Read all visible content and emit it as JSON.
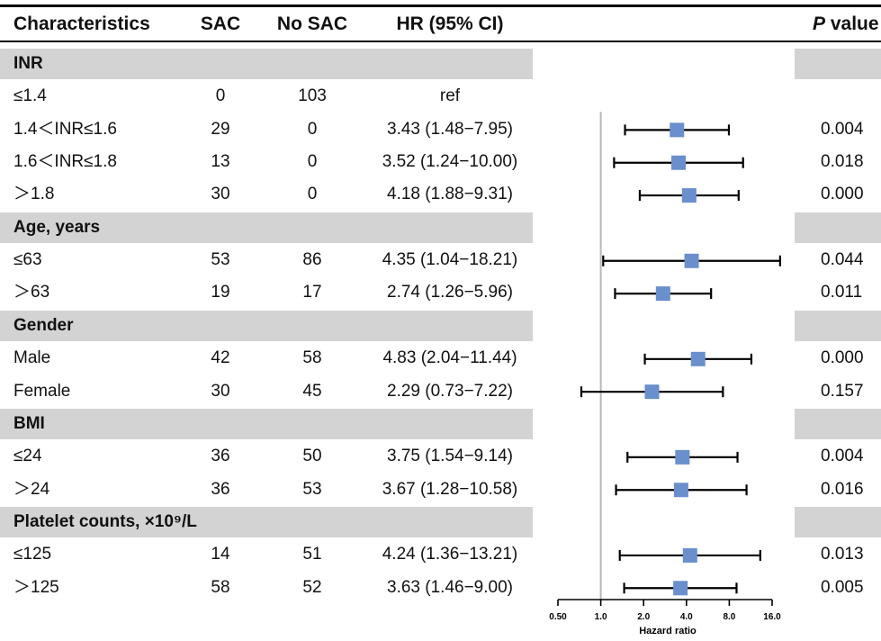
{
  "header": {
    "characteristics": "Characteristics",
    "sac": "SAC",
    "no_sac": "No SAC",
    "hr": "HR (95% CI)",
    "p_italic": "P",
    "p_rest": " value"
  },
  "chart_data": {
    "type": "forest",
    "xlabel": "Hazard ratio",
    "x_scale": "log2",
    "xlim": [
      0.5,
      16.0
    ],
    "x_ticks": [
      "0.50",
      "1.0",
      "2.0",
      "4.0",
      "8.0",
      "16.0"
    ],
    "reference_line": 1.0,
    "marker_color": "#6a8fcd",
    "rows": [
      {
        "kind": "group",
        "label": "INR"
      },
      {
        "kind": "item",
        "label": "≤1.4",
        "sac": "0",
        "no_sac": "103",
        "hr_text": "ref",
        "p": "",
        "hr": null,
        "lo": null,
        "hi": null
      },
      {
        "kind": "item",
        "label": "1.4＜INR≤1.6",
        "sac": "29",
        "no_sac": "0",
        "hr_text": "3.43 (1.48−7.95)",
        "p": "0.004",
        "hr": 3.43,
        "lo": 1.48,
        "hi": 7.95
      },
      {
        "kind": "item",
        "label": "1.6＜INR≤1.8",
        "sac": "13",
        "no_sac": "0",
        "hr_text": "3.52 (1.24−10.00)",
        "p": "0.018",
        "hr": 3.52,
        "lo": 1.24,
        "hi": 10.0
      },
      {
        "kind": "item",
        "label": "＞1.8",
        "sac": "30",
        "no_sac": "0",
        "hr_text": "4.18 (1.88−9.31)",
        "p": "0.000",
        "hr": 4.18,
        "lo": 1.88,
        "hi": 9.31
      },
      {
        "kind": "group",
        "label": "Age, years"
      },
      {
        "kind": "item",
        "label": "≤63",
        "sac": "53",
        "no_sac": "86",
        "hr_text": "4.35 (1.04−18.21)",
        "p": "0.044",
        "hr": 4.35,
        "lo": 1.04,
        "hi": 18.21
      },
      {
        "kind": "item",
        "label": "＞63",
        "sac": "19",
        "no_sac": "17",
        "hr_text": "2.74 (1.26−5.96)",
        "p": "0.011",
        "hr": 2.74,
        "lo": 1.26,
        "hi": 5.96
      },
      {
        "kind": "group",
        "label": "Gender"
      },
      {
        "kind": "item",
        "label": "Male",
        "sac": "42",
        "no_sac": "58",
        "hr_text": "4.83 (2.04−11.44)",
        "p": "0.000",
        "hr": 4.83,
        "lo": 2.04,
        "hi": 11.44
      },
      {
        "kind": "item",
        "label": "Female",
        "sac": "30",
        "no_sac": "45",
        "hr_text": "2.29 (0.73−7.22)",
        "p": "0.157",
        "hr": 2.29,
        "lo": 0.73,
        "hi": 7.22
      },
      {
        "kind": "group",
        "label": "BMI"
      },
      {
        "kind": "item",
        "label": "≤24",
        "sac": "36",
        "no_sac": "50",
        "hr_text": "3.75 (1.54−9.14)",
        "p": "0.004",
        "hr": 3.75,
        "lo": 1.54,
        "hi": 9.14
      },
      {
        "kind": "item",
        "label": "＞24",
        "sac": "36",
        "no_sac": "53",
        "hr_text": "3.67 (1.28−10.58)",
        "p": "0.016",
        "hr": 3.67,
        "lo": 1.28,
        "hi": 10.58
      },
      {
        "kind": "group",
        "label": "Platelet counts, ×10⁹/L"
      },
      {
        "kind": "item",
        "label": "≤125",
        "sac": "14",
        "no_sac": "51",
        "hr_text": "4.24 (1.36−13.21)",
        "p": "0.013",
        "hr": 4.24,
        "lo": 1.36,
        "hi": 13.21
      },
      {
        "kind": "item",
        "label": "＞125",
        "sac": "58",
        "no_sac": "52",
        "hr_text": "3.63 (1.46−9.00)",
        "p": "0.005",
        "hr": 3.63,
        "lo": 1.46,
        "hi": 9.0
      }
    ]
  }
}
